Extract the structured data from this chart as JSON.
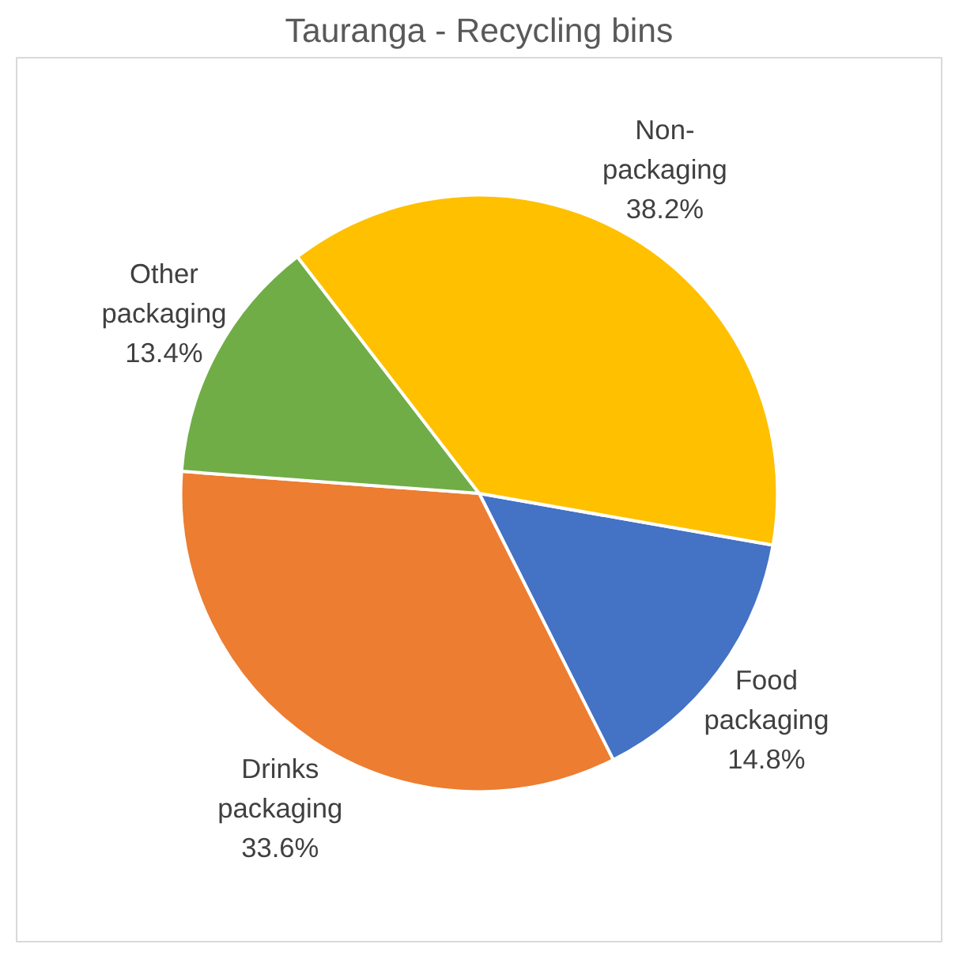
{
  "chart_data": {
    "type": "pie",
    "title": "Tauranga - Recycling bins",
    "categories": [
      "Food packaging",
      "Drinks packaging",
      "Other packaging",
      "Non-packaging"
    ],
    "values": [
      14.8,
      33.6,
      13.4,
      38.2
    ],
    "colors": [
      "#4472c4",
      "#ed7d31",
      "#70ad47",
      "#ffc000"
    ],
    "value_labels": [
      "14.8%",
      "33.6%",
      "13.4%",
      "38.2%"
    ],
    "legend": false
  }
}
